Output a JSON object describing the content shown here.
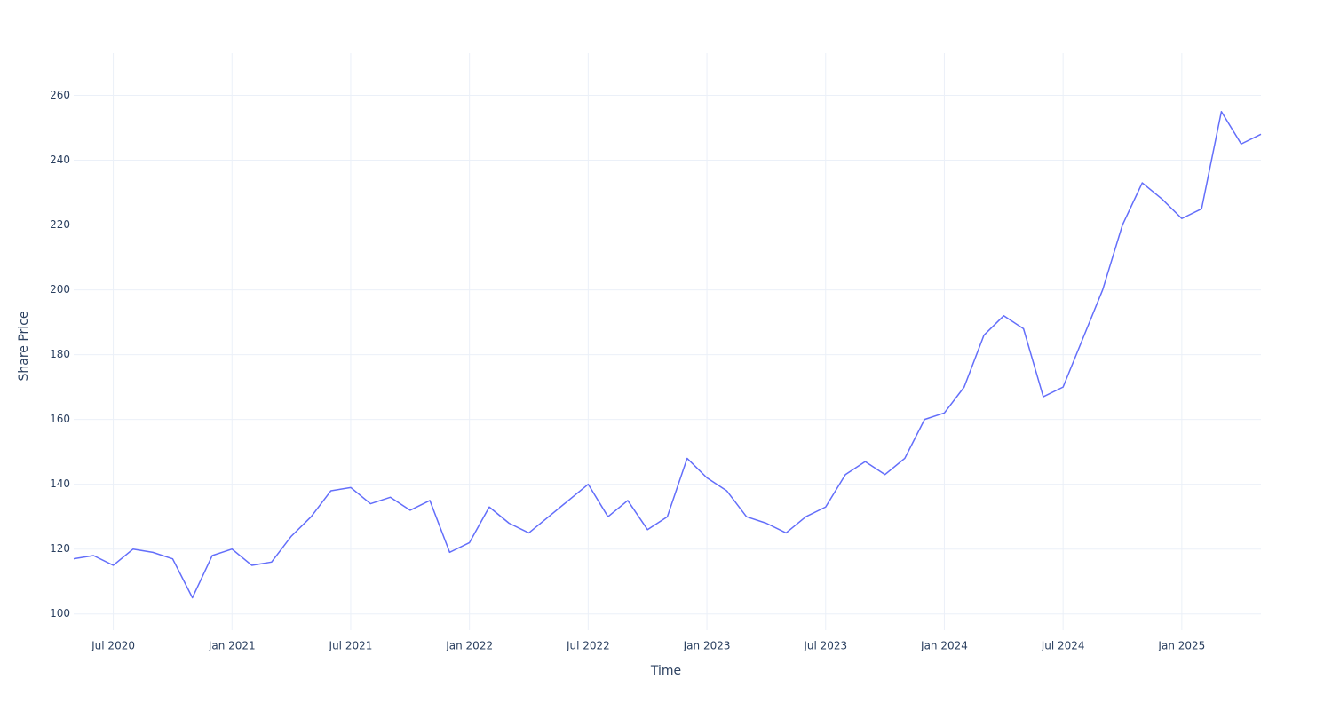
{
  "chart_data": {
    "type": "line",
    "x_label": "Time",
    "y_label": "Share Price",
    "x": [
      "2020-05",
      "2020-06",
      "2020-07",
      "2020-08",
      "2020-09",
      "2020-10",
      "2020-11",
      "2020-12",
      "2021-01",
      "2021-02",
      "2021-03",
      "2021-04",
      "2021-05",
      "2021-06",
      "2021-07",
      "2021-08",
      "2021-09",
      "2021-10",
      "2021-11",
      "2021-12",
      "2022-01",
      "2022-02",
      "2022-03",
      "2022-04",
      "2022-05",
      "2022-06",
      "2022-07",
      "2022-08",
      "2022-09",
      "2022-10",
      "2022-11",
      "2022-12",
      "2023-01",
      "2023-02",
      "2023-03",
      "2023-04",
      "2023-05",
      "2023-06",
      "2023-07",
      "2023-08",
      "2023-09",
      "2023-10",
      "2023-11",
      "2023-12",
      "2024-01",
      "2024-02",
      "2024-03",
      "2024-04",
      "2024-05",
      "2024-06",
      "2024-07",
      "2024-08",
      "2024-09",
      "2024-10",
      "2024-11",
      "2024-12",
      "2025-01",
      "2025-02",
      "2025-03",
      "2025-04",
      "2025-05"
    ],
    "series": [
      {
        "name": "Share Price",
        "color": "#636efa",
        "values": [
          117,
          118,
          115,
          120,
          119,
          117,
          105,
          118,
          120,
          115,
          116,
          124,
          130,
          138,
          139,
          134,
          136,
          132,
          135,
          119,
          122,
          133,
          128,
          125,
          130,
          135,
          140,
          130,
          135,
          126,
          130,
          148,
          142,
          138,
          130,
          128,
          125,
          130,
          133,
          143,
          147,
          143,
          148,
          160,
          162,
          170,
          186,
          192,
          188,
          167,
          170,
          185,
          200,
          220,
          233,
          228,
          222,
          225,
          255,
          245,
          248
        ]
      }
    ],
    "xlim": [
      "2020-05",
      "2025-05"
    ],
    "xticks": [
      {
        "value": "2020-07",
        "label": "Jul 2020"
      },
      {
        "value": "2021-01",
        "label": "Jan 2021"
      },
      {
        "value": "2021-07",
        "label": "Jul 2021"
      },
      {
        "value": "2022-01",
        "label": "Jan 2022"
      },
      {
        "value": "2022-07",
        "label": "Jul 2022"
      },
      {
        "value": "2023-01",
        "label": "Jan 2023"
      },
      {
        "value": "2023-07",
        "label": "Jul 2023"
      },
      {
        "value": "2024-01",
        "label": "Jan 2024"
      },
      {
        "value": "2024-07",
        "label": "Jul 2024"
      },
      {
        "value": "2025-01",
        "label": "Jan 2025"
      }
    ],
    "ylim": [
      95,
      273
    ],
    "yticks": [
      100,
      120,
      140,
      160,
      180,
      200,
      220,
      240,
      260
    ],
    "grid": true
  }
}
